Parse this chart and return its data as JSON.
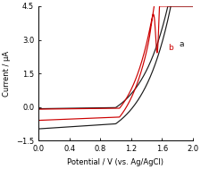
{
  "title": "",
  "xlabel": "Potential / V (vs. Ag/AgCl)",
  "ylabel": "Current / μA",
  "xlim": [
    0.0,
    2.0
  ],
  "ylim": [
    -1.5,
    4.5
  ],
  "xticks": [
    0.0,
    0.4,
    0.8,
    1.2,
    1.6,
    2.0
  ],
  "yticks": [
    -1.5,
    0.0,
    1.5,
    3.0,
    4.5
  ],
  "label_a": "a",
  "label_b": "b",
  "color_a": "#1a1a1a",
  "color_b": "#cc0000",
  "figsize": [
    2.26,
    1.89
  ],
  "dpi": 100
}
